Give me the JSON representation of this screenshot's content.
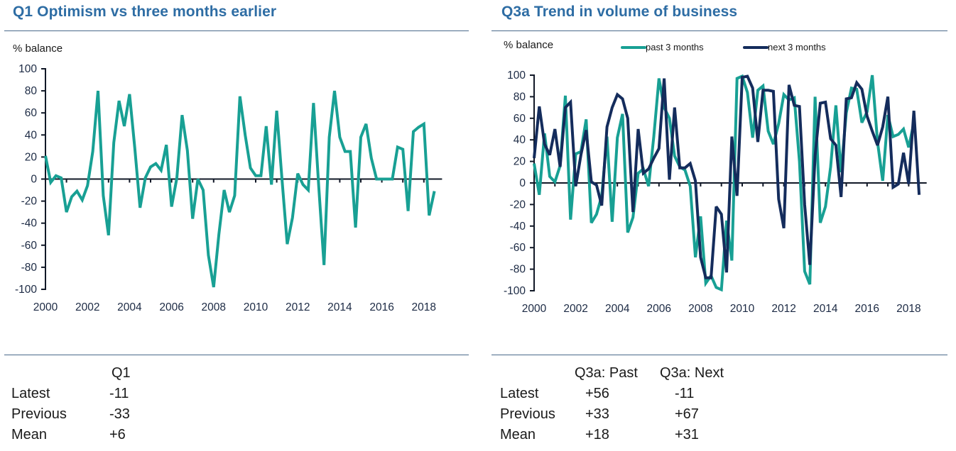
{
  "colors": {
    "title": "#2e6da4",
    "past": "#18a094",
    "next": "#142c5c",
    "axis": "#111827"
  },
  "left": {
    "title": "Q1 Optimism vs three months earlier",
    "stats": {
      "columns": [
        "Q1"
      ],
      "rows": [
        {
          "label": "Latest",
          "values": [
            "-11"
          ]
        },
        {
          "label": "Previous",
          "values": [
            "-33"
          ]
        },
        {
          "label": "Mean",
          "values": [
            "+6"
          ]
        }
      ]
    }
  },
  "right": {
    "title": "Q3a Trend in volume of business",
    "stats": {
      "columns": [
        "Q3a: Past",
        "Q3a: Next"
      ],
      "rows": [
        {
          "label": "Latest",
          "values": [
            "+56",
            "-11"
          ]
        },
        {
          "label": "Previous",
          "values": [
            "+33",
            "+67"
          ]
        },
        {
          "label": "Mean",
          "values": [
            "+18",
            "+31"
          ]
        }
      ]
    }
  },
  "chart_data": [
    {
      "type": "line",
      "title": "Q1 Optimism vs three months earlier",
      "xlabel": "",
      "ylabel": "% balance",
      "ylim": [
        -100,
        100
      ],
      "yticks": [
        100,
        80,
        60,
        40,
        20,
        0,
        -20,
        -40,
        -60,
        -80,
        -100
      ],
      "xticks": [
        "2000",
        "2002",
        "2004",
        "2006",
        "2008",
        "2010",
        "2012",
        "2014",
        "2016",
        "2018"
      ],
      "xlim": [
        2000,
        2019
      ],
      "x_start": 2000.0,
      "x_step": 0.25,
      "grid": false,
      "legend": null,
      "series": [
        {
          "name": "Q1",
          "color": "#18a094",
          "values": [
            21,
            -3,
            3,
            1,
            -30,
            -16,
            -11,
            -19,
            -6,
            25,
            80,
            -15,
            -51,
            33,
            71,
            48,
            77,
            28,
            -26,
            1,
            11,
            14,
            8,
            31,
            -25,
            1,
            58,
            26,
            -36,
            0,
            -10,
            -69,
            -98,
            -50,
            -10,
            -30,
            -15,
            75,
            40,
            10,
            3,
            3,
            48,
            -5,
            62,
            0,
            -59,
            -35,
            5,
            -5,
            -10,
            69,
            -7,
            -78,
            38,
            80,
            38,
            25,
            25,
            -44,
            38,
            50,
            19,
            0,
            0,
            0,
            0,
            29,
            27,
            -29,
            43,
            47,
            50,
            -33,
            -11
          ]
        }
      ]
    },
    {
      "type": "line",
      "title": "Q3a Trend in volume of business",
      "xlabel": "",
      "ylabel": "% balance",
      "ylim": [
        -100,
        100
      ],
      "yticks": [
        100,
        80,
        60,
        40,
        20,
        0,
        -20,
        -40,
        -60,
        -80,
        -100
      ],
      "xticks": [
        "2000",
        "2002",
        "2004",
        "2006",
        "2008",
        "2010",
        "2012",
        "2014",
        "2016",
        "2018"
      ],
      "xlim": [
        2000,
        2019
      ],
      "x_start": 2000.0,
      "x_step": 0.25,
      "grid": false,
      "legend": "top-center",
      "series": [
        {
          "name": "past 3 months",
          "color": "#18a094",
          "values": [
            18,
            -11,
            46,
            6,
            1,
            16,
            81,
            -34,
            27,
            29,
            59,
            -37,
            -29,
            -12,
            43,
            -36,
            42,
            64,
            -46,
            -32,
            9,
            13,
            -3,
            43,
            97,
            70,
            60,
            25,
            15,
            12,
            -3,
            -69,
            -31,
            -93,
            -86,
            -97,
            -99,
            -35,
            -72,
            97,
            99,
            84,
            42,
            86,
            90,
            48,
            36,
            55,
            82,
            77,
            79,
            20,
            -82,
            -94,
            80,
            -37,
            -22,
            15,
            72,
            10,
            65,
            88,
            87,
            56,
            66,
            100,
            38,
            2,
            63,
            43,
            45,
            50,
            33,
            56
          ]
        },
        {
          "name": "next 3 months",
          "color": "#142c5c",
          "values": [
            23,
            71,
            36,
            26,
            50,
            15,
            70,
            75,
            -3,
            26,
            49,
            1,
            -2,
            -21,
            52,
            70,
            82,
            78,
            60,
            -27,
            50,
            9,
            13,
            23,
            32,
            97,
            3,
            70,
            14,
            14,
            18,
            2,
            -69,
            -88,
            -88,
            -22,
            -29,
            -83,
            43,
            -12,
            98,
            99,
            88,
            38,
            86,
            86,
            85,
            -15,
            -42,
            91,
            72,
            71,
            -20,
            -76,
            25,
            74,
            75,
            41,
            35,
            -13,
            78,
            79,
            93,
            87,
            62,
            48,
            35,
            52,
            80,
            -4,
            -1,
            28,
            -1,
            67,
            -11
          ]
        }
      ]
    }
  ]
}
